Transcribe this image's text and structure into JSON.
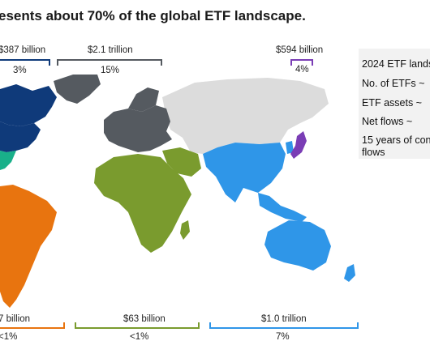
{
  "title": "esents about 70% of the global ETF landscape.",
  "regions": {
    "canada": {
      "value": "$387 billion",
      "pct": "3%",
      "color": "#0f3a7a"
    },
    "europe": {
      "value": "$2.1 trillion",
      "pct": "15%",
      "color": "#555a60"
    },
    "japan": {
      "value": "$594 billion",
      "pct": "4%",
      "color": "#7a3db5"
    },
    "latam": {
      "value": "7 billion",
      "pct": "<1%",
      "color": "#e8740f"
    },
    "africa": {
      "value": "$63 billion",
      "pct": "<1%",
      "color": "#7a9b2e"
    },
    "apac": {
      "value": "$1.0 trillion",
      "pct": "7%",
      "color": "#2f96e8"
    },
    "us": {
      "color": "#0f3a7a"
    },
    "mexico": {
      "color": "#19b08a"
    },
    "rest": {
      "color": "#dcdcdc"
    }
  },
  "panel": {
    "heading": "2024 ETF lands",
    "rows": [
      "No. of ETFs ~",
      "ETF assets ~",
      "Net flows ~"
    ],
    "footer_line1": "15 years of con",
    "footer_line2": "flows"
  }
}
